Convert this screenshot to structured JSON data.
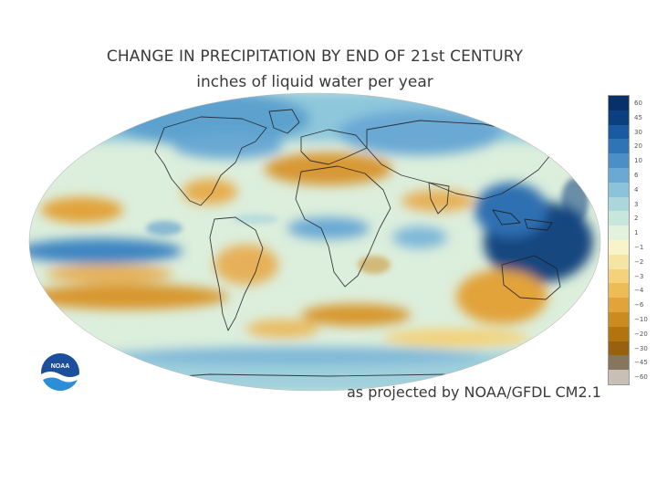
{
  "title": "CHANGE IN PRECIPITATION BY END OF 21st CENTURY",
  "subtitle": "inches of liquid water per year",
  "credit": "as projected by NOAA/GFDL CM2.1",
  "logo": {
    "text": "NOAA",
    "icon": "noaa-logo-icon"
  },
  "legend": {
    "ticks": [
      "60",
      "45",
      "30",
      "20",
      "10",
      "6",
      "4",
      "3",
      "2",
      "1",
      "−1",
      "−2",
      "−3",
      "−4",
      "−6",
      "−10",
      "−20",
      "−30",
      "−45",
      "−60"
    ],
    "colors": [
      "#08306b",
      "#0b3f7f",
      "#1a5aa0",
      "#2f74b6",
      "#4a90c7",
      "#6aa9d4",
      "#8cc3dc",
      "#aad6dc",
      "#c7e6dc",
      "#e3f2dd",
      "#f9f3c9",
      "#f6e4a2",
      "#f3d27a",
      "#eebc55",
      "#e2a33a",
      "#cc8a1f",
      "#b3730f",
      "#986010",
      "#86765e",
      "#c8c0b4"
    ]
  }
}
